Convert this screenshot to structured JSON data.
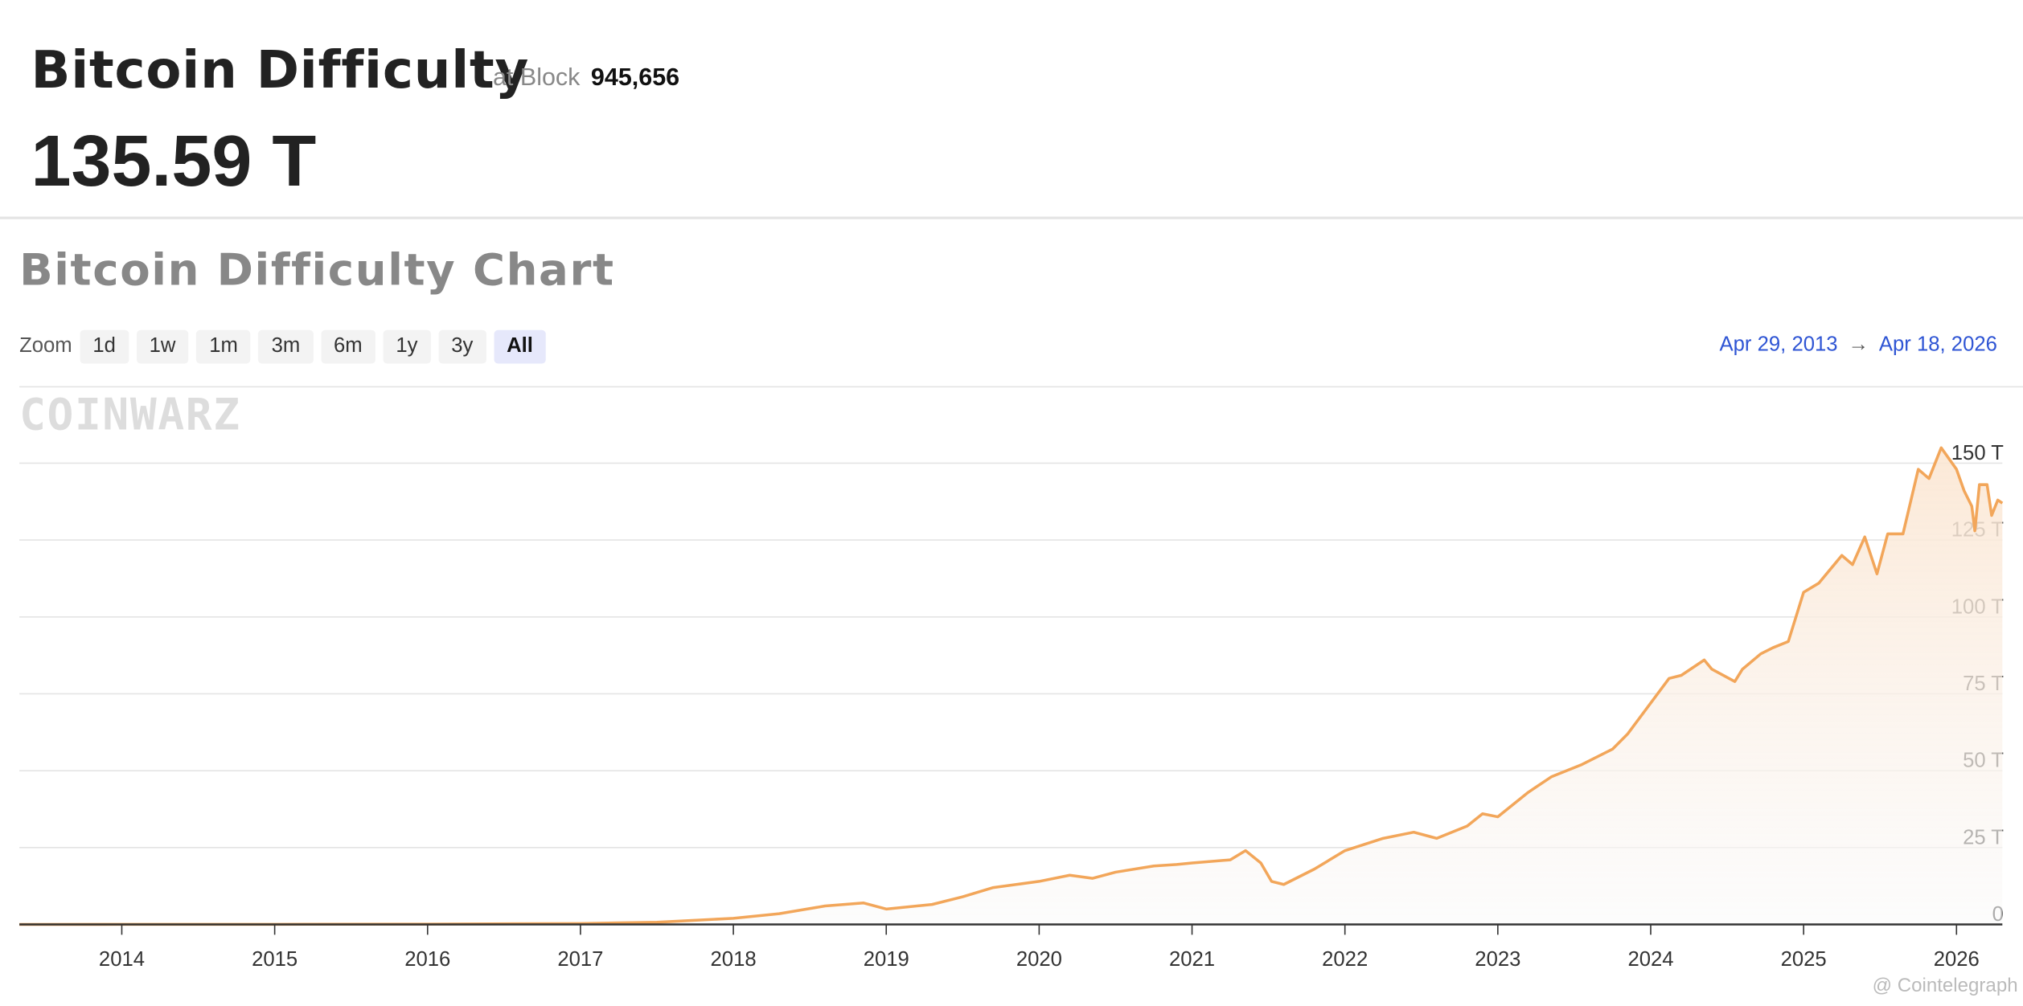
{
  "header": {
    "title": "Bitcoin Difficulty",
    "block_prefix": "at Block",
    "block": "945,656",
    "value": "135.59 T"
  },
  "section_title": "Bitcoin Difficulty Chart",
  "zoom": {
    "label": "Zoom",
    "options": [
      "1d",
      "1w",
      "1m",
      "3m",
      "6m",
      "1y",
      "3y",
      "All"
    ],
    "active": "All"
  },
  "range": {
    "from": "Apr 29, 2013",
    "to": "Apr 18, 2026"
  },
  "watermark": "COINWARZ",
  "credit": "@ Cointelegraph",
  "chart_data": {
    "type": "area",
    "color": "#f2a65a",
    "x": [
      2013.33,
      2014,
      2015,
      2016,
      2017,
      2017.5,
      2018,
      2018.3,
      2018.6,
      2018.85,
      2019,
      2019.3,
      2019.5,
      2019.7,
      2019.85,
      2020,
      2020.2,
      2020.35,
      2020.5,
      2020.75,
      2020.9,
      2021,
      2021.25,
      2021.35,
      2021.45,
      2021.52,
      2021.6,
      2021.8,
      2022,
      2022.25,
      2022.45,
      2022.6,
      2022.8,
      2022.9,
      2023,
      2023.2,
      2023.35,
      2023.55,
      2023.75,
      2023.85,
      2024,
      2024.12,
      2024.2,
      2024.35,
      2024.4,
      2024.55,
      2024.6,
      2024.72,
      2024.8,
      2024.9,
      2025,
      2025.1,
      2025.25,
      2025.32,
      2025.4,
      2025.48,
      2025.55,
      2025.65,
      2025.75,
      2025.82,
      2025.9,
      2026.0,
      2026.05,
      2026.1,
      2026.12,
      2026.15,
      2026.2,
      2026.23,
      2026.27,
      2026.3
    ],
    "values": [
      0.01,
      0.02,
      0.04,
      0.1,
      0.3,
      0.7,
      2,
      3.5,
      6,
      7,
      5,
      6.5,
      9,
      12,
      13,
      14,
      16,
      15,
      17,
      19,
      19.5,
      20,
      21,
      24,
      20,
      14,
      13,
      18,
      24,
      28,
      30,
      28,
      32,
      36,
      35,
      43,
      48,
      52,
      57,
      62,
      72,
      80,
      81,
      86,
      83,
      79,
      83,
      88,
      90,
      92,
      108,
      111,
      120,
      117,
      126,
      114,
      127,
      127,
      148,
      145,
      155,
      148,
      141,
      136,
      128,
      143,
      143,
      133,
      138,
      137
    ],
    "xlim": [
      2013.33,
      2026.3
    ],
    "xticks": [
      2014,
      2015,
      2016,
      2017,
      2018,
      2019,
      2020,
      2021,
      2022,
      2023,
      2024,
      2025,
      2026
    ],
    "ylim": [
      0,
      175
    ],
    "yticks": [
      0,
      {
        "value": 25,
        "label": "25 T"
      },
      {
        "value": 50,
        "label": "50 T"
      },
      {
        "value": 75,
        "label": "75 T"
      },
      {
        "value": 100,
        "label": "100 T"
      },
      {
        "value": 125,
        "label": "125 T"
      },
      {
        "value": 150,
        "label": "150 T"
      }
    ],
    "grid": true
  }
}
